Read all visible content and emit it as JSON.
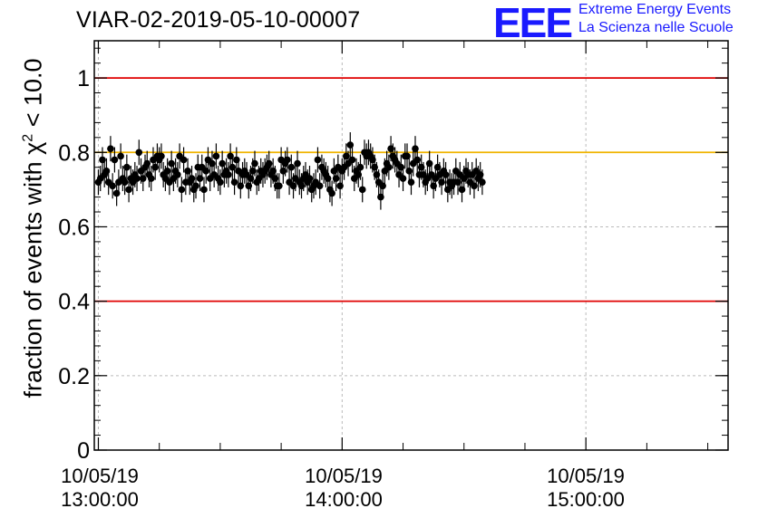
{
  "title": "VIAR-02-2019-05-10-00007",
  "logo": {
    "mark": "EEE",
    "line1": "Extreme Energy Events",
    "line2": "La Scienza nelle Scuole",
    "color": "#1a1aff"
  },
  "chart_data": {
    "type": "scatter",
    "title": "VIAR-02-2019-05-10-00007",
    "ylabel_prefix": "fraction of events with ",
    "ylabel_symbol": "χ",
    "ylabel_sup": "2",
    "ylabel_suffix": " < 10.0",
    "xlabel": "",
    "ylim": [
      0,
      1.1
    ],
    "xlim": [
      "10/05/19 12:59:00",
      "10/05/19 15:35:00"
    ],
    "yticks": [
      0,
      0.2,
      0.4,
      0.6,
      0.8,
      1
    ],
    "ytick_labels": [
      "0",
      "0.2",
      "0.4",
      "0.6",
      "0.8",
      "1"
    ],
    "xtick_labels": [
      {
        "date": "10/05/19",
        "time": "13:00:00"
      },
      {
        "date": "10/05/19",
        "time": "14:00:00"
      },
      {
        "date": "10/05/19",
        "time": "15:00:00"
      }
    ],
    "grid": true,
    "reference_lines": [
      {
        "y": 1.0,
        "color": "#e00000"
      },
      {
        "y": 0.8,
        "color": "#f0b400"
      },
      {
        "y": 0.4,
        "color": "#e00000"
      }
    ],
    "series": [
      {
        "marker_color": "#000000",
        "x_start": "13:00:00",
        "x_step_minutes": 0.5,
        "y": [
          0.72,
          0.73,
          0.78,
          0.74,
          0.75,
          0.72,
          0.81,
          0.71,
          0.78,
          0.69,
          0.72,
          0.79,
          0.73,
          0.72,
          0.76,
          0.7,
          0.73,
          0.72,
          0.74,
          0.73,
          0.8,
          0.75,
          0.73,
          0.76,
          0.77,
          0.74,
          0.73,
          0.78,
          0.76,
          0.79,
          0.78,
          0.79,
          0.74,
          0.73,
          0.75,
          0.72,
          0.77,
          0.73,
          0.75,
          0.74,
          0.79,
          0.7,
          0.78,
          0.72,
          0.75,
          0.72,
          0.73,
          0.7,
          0.71,
          0.76,
          0.73,
          0.76,
          0.7,
          0.75,
          0.78,
          0.73,
          0.77,
          0.74,
          0.79,
          0.73,
          0.72,
          0.77,
          0.74,
          0.75,
          0.74,
          0.79,
          0.76,
          0.72,
          0.78,
          0.75,
          0.71,
          0.74,
          0.75,
          0.74,
          0.71,
          0.73,
          0.75,
          0.77,
          0.72,
          0.73,
          0.75,
          0.74,
          0.75,
          0.76,
          0.77,
          0.74,
          0.75,
          0.73,
          0.71,
          0.71,
          0.78,
          0.75,
          0.77,
          0.78,
          0.72,
          0.76,
          0.71,
          0.73,
          0.77,
          0.72,
          0.71,
          0.73,
          0.74,
          0.72,
          0.73,
          0.7,
          0.71,
          0.72,
          0.78,
          0.71,
          0.76,
          0.75,
          0.74,
          0.73,
          0.7,
          0.69,
          0.75,
          0.73,
          0.76,
          0.71,
          0.75,
          0.76,
          0.79,
          0.77,
          0.82,
          0.78,
          0.73,
          0.75,
          0.74,
          0.76,
          0.7,
          0.8,
          0.79,
          0.8,
          0.79,
          0.78,
          0.76,
          0.74,
          0.72,
          0.68,
          0.71,
          0.75,
          0.77,
          0.76,
          0.81,
          0.79,
          0.78,
          0.77,
          0.74,
          0.76,
          0.73,
          0.79,
          0.79,
          0.75,
          0.72,
          0.77,
          0.81,
          0.78,
          0.74,
          0.76,
          0.74,
          0.72,
          0.73,
          0.77,
          0.74,
          0.71,
          0.73,
          0.76,
          0.74,
          0.72,
          0.75,
          0.74,
          0.7,
          0.72,
          0.71,
          0.72,
          0.75,
          0.72,
          0.74,
          0.7,
          0.73,
          0.75,
          0.74,
          0.72,
          0.74,
          0.71,
          0.75,
          0.73,
          0.74,
          0.72
        ]
      }
    ]
  }
}
